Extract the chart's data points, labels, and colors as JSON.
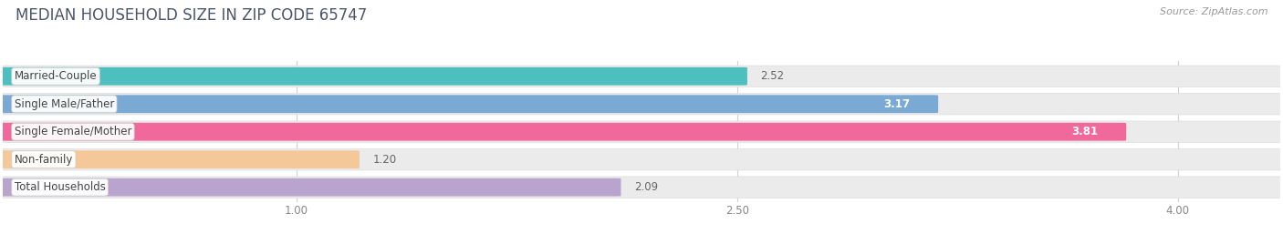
{
  "title": "MEDIAN HOUSEHOLD SIZE IN ZIP CODE 65747",
  "source": "Source: ZipAtlas.com",
  "categories": [
    "Married-Couple",
    "Single Male/Father",
    "Single Female/Mother",
    "Non-family",
    "Total Households"
  ],
  "values": [
    2.52,
    3.17,
    3.81,
    1.2,
    2.09
  ],
  "bar_colors": [
    "#4DBFBF",
    "#7AAAD4",
    "#F0699A",
    "#F5C89A",
    "#B8A4CC"
  ],
  "value_inside": [
    false,
    true,
    true,
    false,
    false
  ],
  "xlim_left": 0.0,
  "xlim_right": 4.35,
  "data_min": 1.0,
  "data_max": 4.0,
  "xticks": [
    1.0,
    2.5,
    4.0
  ],
  "xticklabels": [
    "1.00",
    "2.50",
    "4.00"
  ],
  "background_color": "#ffffff",
  "bar_bg_color": "#ebebeb",
  "bar_row_bg": "#f5f5f5",
  "title_fontsize": 12,
  "source_fontsize": 8,
  "label_fontsize": 8.5,
  "value_fontsize": 8.5,
  "bar_height": 0.62
}
